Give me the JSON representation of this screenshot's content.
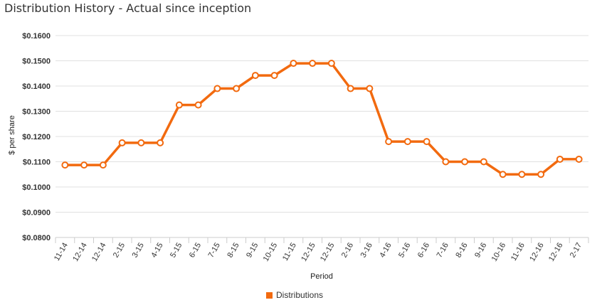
{
  "title": "Distribution History - Actual since inception",
  "legend": {
    "label": "Distributions",
    "position": "bottom-center"
  },
  "colors": {
    "series": "#f26a0f",
    "grid": "#e0e0e0",
    "axis": "#cccccc"
  },
  "chart_data": {
    "type": "line",
    "title": "Distribution History - Actual since inception",
    "xlabel": "Period",
    "ylabel": "$ per share",
    "ylim": [
      0.08,
      0.16
    ],
    "yticks": [
      "$0.0800",
      "$0.0900",
      "$0.1000",
      "$0.1100",
      "$0.1200",
      "$0.1300",
      "$0.1400",
      "$0.1500",
      "$0.1600"
    ],
    "ytick_values": [
      0.08,
      0.09,
      0.1,
      0.11,
      0.12,
      0.13,
      0.14,
      0.15,
      0.16
    ],
    "grid": true,
    "categories": [
      "11-14",
      "12-14",
      "12-14",
      "2-15",
      "3-15",
      "4-15",
      "5-15",
      "6-15",
      "7-15",
      "8-15",
      "9-15",
      "10-15",
      "11-15",
      "12-15",
      "12-15",
      "2-16",
      "3-16",
      "4-16",
      "5-16",
      "6-16",
      "7-16",
      "8-16",
      "9-16",
      "10-16",
      "11-16",
      "12-16",
      "12-16",
      "2-17"
    ],
    "series": [
      {
        "name": "Distributions",
        "values": [
          0.1087,
          0.1087,
          0.1087,
          0.1175,
          0.1175,
          0.1175,
          0.1325,
          0.1325,
          0.139,
          0.139,
          0.1442,
          0.1442,
          0.149,
          0.149,
          0.149,
          0.139,
          0.139,
          0.118,
          0.118,
          0.118,
          0.11,
          0.11,
          0.11,
          0.105,
          0.105,
          0.105,
          0.111,
          0.111
        ]
      }
    ]
  }
}
